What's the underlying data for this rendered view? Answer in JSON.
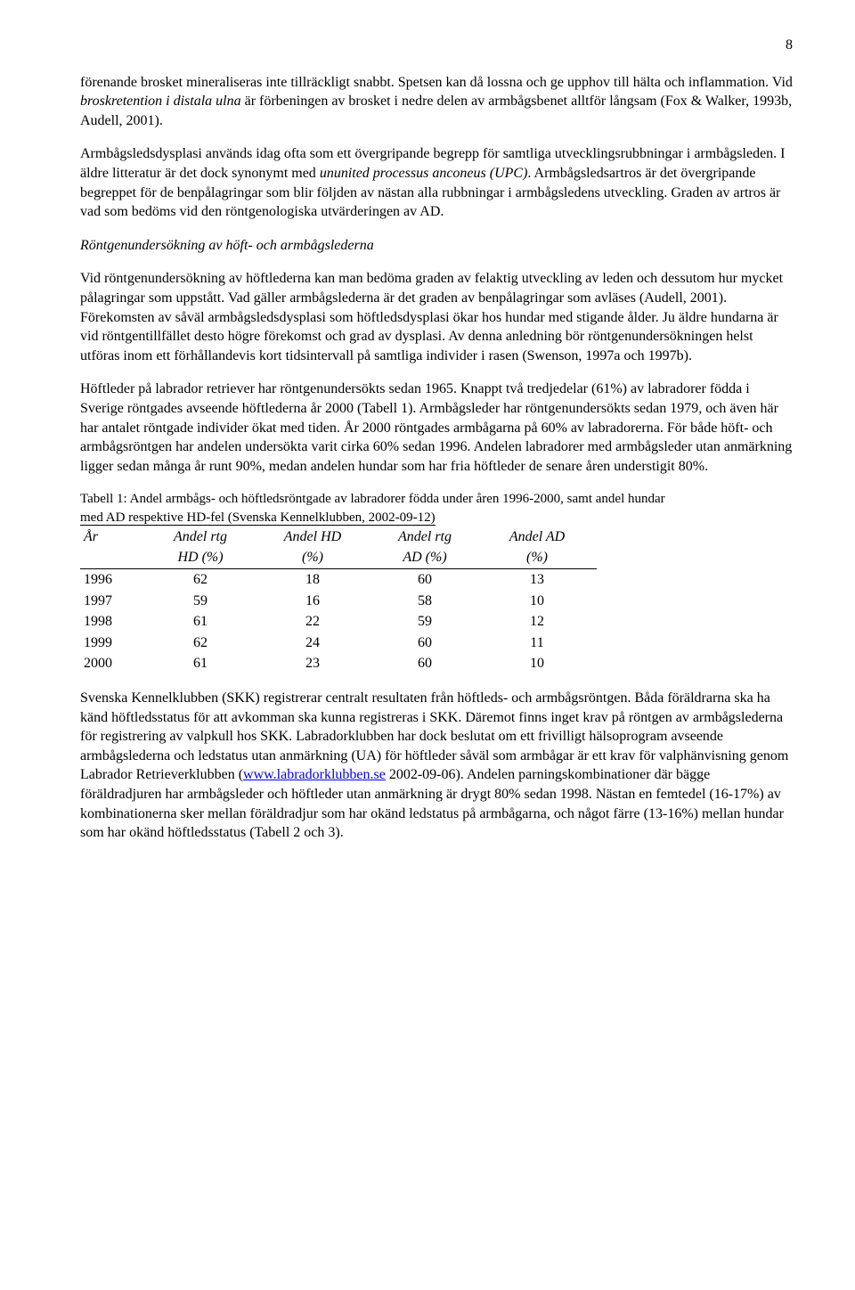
{
  "page_number": "8",
  "para1_a": "förenande brosket mineraliseras inte tillräckligt snabbt. Spetsen kan då lossna och ge upphov till hälta och inflammation. Vid ",
  "para1_b": "broskretention i distala ulna",
  "para1_c": " är förbeningen av brosket i nedre delen av armbågsbenet alltför långsam (Fox & Walker, 1993b, Audell, 2001).",
  "para2_a": "Armbågsledsdysplasi används idag ofta som ett övergripande begrepp för samtliga utvecklingsrubbningar i armbågsleden. I äldre litteratur är det dock synonymt med ",
  "para2_b": "ununited processus anconeus (UPC)",
  "para2_c": ". Armbågsledsartros är det övergripande begreppet för de benpålagringar som blir följden av nästan alla rubbningar i armbågsledens utveckling. Graden av artros är vad som bedöms vid den röntgenologiska utvärderingen av AD.",
  "heading1": "Röntgenundersökning av höft- och armbågslederna",
  "para3": "Vid röntgenundersökning av höftlederna kan man bedöma graden av felaktig utveckling av leden och dessutom hur mycket pålagringar som uppstått. Vad gäller armbågslederna är det graden av benpålagringar som avläses (Audell, 2001). Förekomsten av såväl armbågsledsdysplasi som höftledsdysplasi ökar hos hundar med stigande ålder. Ju äldre hundarna är vid röntgentillfället desto högre förekomst och grad av dysplasi. Av denna anledning bör röntgenundersökningen helst utföras inom ett förhållandevis kort tidsintervall på samtliga individer i rasen (Swenson, 1997a och 1997b).",
  "para4": "Höftleder på labrador retriever har röntgenundersökts sedan 1965. Knappt två tredjedelar (61%) av labradorer födda i Sverige röntgades avseende höftlederna år 2000 (Tabell 1). Armbågsleder har röntgenundersökts sedan 1979, och även här har antalet röntgade individer ökat med tiden. År 2000 röntgades armbågarna på 60% av labradorerna. För både höft- och armbågsröntgen har andelen undersökta varit cirka 60% sedan 1996. Andelen labradorer med armbågsleder utan anmärkning ligger sedan många år runt 90%, medan andelen hundar som har fria höftleder de senare åren understigit 80%.",
  "table_caption_a": "Tabell 1: Andel armbågs- och höftledsröntgade av labradorer födda under åren 1996-2000, samt andel hundar ",
  "table_caption_b": "med AD respektive HD-fel (Svenska Kennelklubben, 2002-09-12)",
  "table": {
    "header1": [
      "År",
      "Andel rtg",
      "Andel HD",
      "Andel rtg",
      "Andel AD"
    ],
    "header2": [
      "",
      "HD (%)",
      "(%)",
      "AD (%)",
      "(%)"
    ],
    "rows": [
      [
        "1996",
        "62",
        "18",
        "60",
        "13"
      ],
      [
        "1997",
        "59",
        "16",
        "58",
        "10"
      ],
      [
        "1998",
        "61",
        "22",
        "59",
        "12"
      ],
      [
        "1999",
        "62",
        "24",
        "60",
        "11"
      ],
      [
        "2000",
        "61",
        "23",
        "60",
        "10"
      ]
    ]
  },
  "para5_a": "Svenska Kennelklubben (SKK) registrerar centralt resultaten från höftleds- och armbågsröntgen. Båda föräldrarna ska ha känd höftledsstatus för att avkomman ska kunna registreras i SKK. Däremot finns inget krav på röntgen av armbågslederna för registrering av valpkull hos SKK. Labradorklubben har dock beslutat om ett frivilligt hälsoprogram avseende armbågslederna och ledstatus utan anmärkning (UA) för höftleder såväl som armbågar är ett krav för valphänvisning genom Labrador Retrieverklubben (",
  "para5_link": "www.labradorklubben.se",
  "para5_b": " 2002-09-06). Andelen parningskombinationer där bägge föräldradjuren har armbågsleder och höftleder utan anmärkning är drygt 80% sedan 1998. Nästan en femtedel (16-17%) av kombinationerna sker mellan föräldradjur som har okänd ledstatus på armbågarna, och något färre (13-16%) mellan hundar som har okänd höftledsstatus (Tabell 2 och 3)."
}
